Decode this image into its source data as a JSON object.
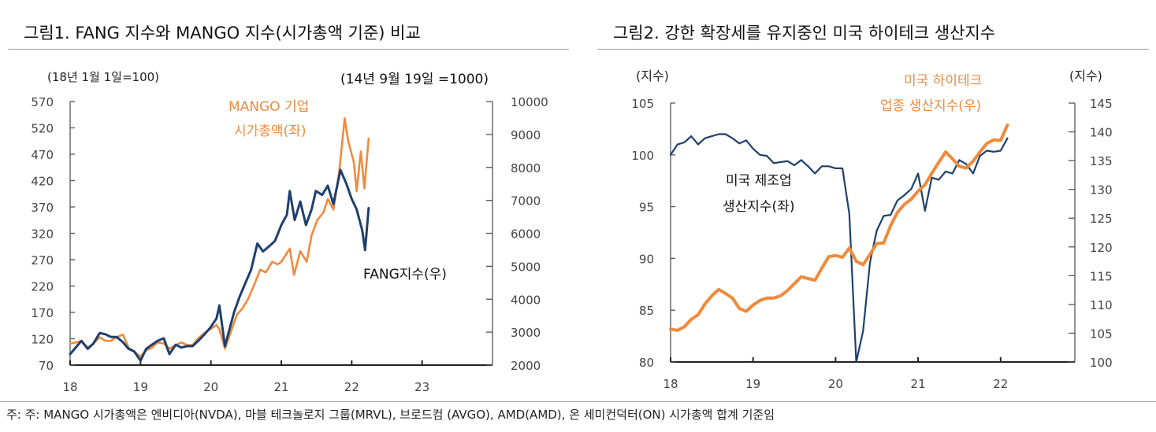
{
  "figure1": {
    "title": "그림1. FANG 지수와 MANGO 지수(시가총액 기준) 비교",
    "left_unit": "(18년 1월 1일=100)",
    "right_unit": "(14년 9월 19일 =1000)",
    "mango_label_1": "MANGO 기업",
    "mango_label_2": "시가총액(좌)",
    "fang_label": "FANG지수(우)"
  },
  "figure2": {
    "title": "그림2. 강한 확장세를 유지중인 미국 하이테크 생산지수",
    "left_unit": "(지수)",
    "right_unit": "(지수)",
    "hitech_label_1": "미국 하이테크",
    "hitech_label_2": "업종 생산지수(우)",
    "mfg_label_1": "미국 제조업",
    "mfg_label_2": "생산지수(좌)"
  },
  "footnote": "주: 주: MANGO 시가총액은 엔비디아(NVDA), 마블 테크놀로지 그룹(MRVL), 브로드컴 (AVGO), AMD(AMD), 온 세미컨덕터(ON) 시가총액 합계 기준임",
  "colors": {
    "navy": "#1f3f6e",
    "orange": "#f08a3c"
  },
  "chart_data": [
    {
      "type": "line",
      "title": "그림1. FANG 지수와 MANGO 지수(시가총액 기준) 비교",
      "x_ticks": [
        "18",
        "19",
        "20",
        "21",
        "22",
        "23"
      ],
      "xlim": [
        18,
        24
      ],
      "y_left": {
        "label": "(18년 1월 1일=100)",
        "lim": [
          70,
          570
        ],
        "ticks": [
          "570",
          "520",
          "470",
          "420",
          "370",
          "320",
          "270",
          "220",
          "170",
          "120",
          "70"
        ]
      },
      "y_right": {
        "label": "(14년 9월 19일 =1000)",
        "lim": [
          2000,
          10000
        ],
        "ticks": [
          "10000",
          "9000",
          "8000",
          "7000",
          "6000",
          "5000",
          "4000",
          "3000",
          "2000"
        ]
      },
      "grid": false,
      "series": [
        {
          "name": "MANGO 기업 시가총액(좌)",
          "axis": "left",
          "color": "#f08a3c",
          "points": [
            [
              18.0,
              111
            ],
            [
              18.08,
              113
            ],
            [
              18.16,
              116
            ],
            [
              18.25,
              103
            ],
            [
              18.33,
              111
            ],
            [
              18.42,
              123
            ],
            [
              18.5,
              116
            ],
            [
              18.58,
              116
            ],
            [
              18.66,
              123
            ],
            [
              18.75,
              128
            ],
            [
              18.83,
              103
            ],
            [
              18.91,
              96
            ],
            [
              19.0,
              86
            ],
            [
              19.08,
              98
            ],
            [
              19.16,
              103
            ],
            [
              19.24,
              113
            ],
            [
              19.33,
              111
            ],
            [
              19.41,
              101
            ],
            [
              19.5,
              108
            ],
            [
              19.58,
              113
            ],
            [
              19.66,
              108
            ],
            [
              19.74,
              108
            ],
            [
              19.82,
              121
            ],
            [
              19.91,
              131
            ],
            [
              19.99,
              138
            ],
            [
              20.08,
              146
            ],
            [
              20.12,
              138
            ],
            [
              20.2,
              101
            ],
            [
              20.29,
              136
            ],
            [
              20.37,
              166
            ],
            [
              20.45,
              178
            ],
            [
              20.53,
              196
            ],
            [
              20.61,
              221
            ],
            [
              20.7,
              251
            ],
            [
              20.78,
              246
            ],
            [
              20.87,
              266
            ],
            [
              20.95,
              261
            ],
            [
              21.0,
              266
            ],
            [
              21.12,
              291
            ],
            [
              21.18,
              241
            ],
            [
              21.27,
              286
            ],
            [
              21.36,
              266
            ],
            [
              21.43,
              316
            ],
            [
              21.51,
              345
            ],
            [
              21.6,
              360
            ],
            [
              21.66,
              385
            ],
            [
              21.74,
              365
            ],
            [
              21.82,
              435
            ],
            [
              21.9,
              538
            ],
            [
              21.95,
              495
            ],
            [
              22.03,
              455
            ],
            [
              22.07,
              400
            ],
            [
              22.13,
              475
            ],
            [
              22.18,
              405
            ],
            [
              22.24,
              500
            ]
          ]
        },
        {
          "name": "FANG지수(우)",
          "axis": "right",
          "color": "#1f3f6e",
          "points": [
            [
              18.0,
              2335
            ],
            [
              18.08,
              2535
            ],
            [
              18.16,
              2735
            ],
            [
              18.25,
              2495
            ],
            [
              18.33,
              2655
            ],
            [
              18.42,
              2975
            ],
            [
              18.5,
              2935
            ],
            [
              18.58,
              2855
            ],
            [
              18.66,
              2855
            ],
            [
              18.75,
              2695
            ],
            [
              18.83,
              2495
            ],
            [
              18.91,
              2415
            ],
            [
              19.0,
              2135
            ],
            [
              19.08,
              2495
            ],
            [
              19.16,
              2615
            ],
            [
              19.24,
              2735
            ],
            [
              19.33,
              2815
            ],
            [
              19.41,
              2335
            ],
            [
              19.5,
              2615
            ],
            [
              19.58,
              2535
            ],
            [
              19.66,
              2575
            ],
            [
              19.74,
              2575
            ],
            [
              19.82,
              2735
            ],
            [
              19.91,
              2935
            ],
            [
              19.99,
              3135
            ],
            [
              20.08,
              3415
            ],
            [
              20.12,
              3810
            ],
            [
              20.2,
              2575
            ],
            [
              20.24,
              2895
            ],
            [
              20.33,
              3610
            ],
            [
              20.41,
              4090
            ],
            [
              20.49,
              4490
            ],
            [
              20.57,
              4890
            ],
            [
              20.66,
              5690
            ],
            [
              20.74,
              5450
            ],
            [
              20.83,
              5610
            ],
            [
              20.91,
              5770
            ],
            [
              21.0,
              6250
            ],
            [
              21.08,
              6565
            ],
            [
              21.12,
              7285
            ],
            [
              21.19,
              6405
            ],
            [
              21.27,
              6965
            ],
            [
              21.35,
              6250
            ],
            [
              21.43,
              6725
            ],
            [
              21.49,
              7285
            ],
            [
              21.58,
              7165
            ],
            [
              21.66,
              7445
            ],
            [
              21.74,
              6885
            ],
            [
              21.84,
              7925
            ],
            [
              21.92,
              7525
            ],
            [
              22.0,
              7045
            ],
            [
              22.07,
              6725
            ],
            [
              22.15,
              6090
            ],
            [
              22.19,
              5490
            ],
            [
              22.24,
              6765
            ]
          ]
        }
      ]
    },
    {
      "type": "line",
      "title": "그림2. 강한 확장세를 유지중인 미국 하이테크 생산지수",
      "x_ticks": [
        "18",
        "19",
        "20",
        "21",
        "22"
      ],
      "xlim": [
        18,
        22.9
      ],
      "y_left": {
        "label": "(지수)",
        "lim": [
          80,
          105
        ],
        "ticks": [
          "105",
          "100",
          "95",
          "90",
          "85",
          "80"
        ]
      },
      "y_right": {
        "label": "(지수)",
        "lim": [
          100,
          145
        ],
        "ticks": [
          "145",
          "140",
          "135",
          "130",
          "125",
          "120",
          "115",
          "110",
          "105",
          "100"
        ]
      },
      "grid": false,
      "x_start": "2018-01",
      "frequency": "monthly",
      "series": [
        {
          "name": "미국 제조업 생산지수(좌)",
          "axis": "left",
          "color": "#1f3f6e",
          "values": [
            100.0,
            101.0,
            101.2,
            101.8,
            101.0,
            101.6,
            101.8,
            102.0,
            102.0,
            101.6,
            101.1,
            101.4,
            100.6,
            100.0,
            99.9,
            99.2,
            99.3,
            99.4,
            99.0,
            99.5,
            98.9,
            98.2,
            98.9,
            98.9,
            98.7,
            98.7,
            94.3,
            80.0,
            83.0,
            89.6,
            92.7,
            94.1,
            94.2,
            95.6,
            96.1,
            96.7,
            98.2,
            94.6,
            97.8,
            97.6,
            98.4,
            98.2,
            99.5,
            99.1,
            98.2,
            99.9,
            100.4,
            100.3,
            100.4,
            101.6
          ]
        },
        {
          "name": "미국 하이테크 업종 생산지수(우)",
          "axis": "right",
          "color": "#f08a3c",
          "values": [
            105.7,
            105.5,
            106.1,
            107.4,
            108.2,
            110.1,
            111.5,
            112.6,
            111.9,
            111.1,
            109.3,
            108.8,
            109.9,
            110.7,
            111.1,
            111.1,
            111.5,
            112.4,
            113.6,
            114.8,
            114.5,
            114.2,
            116.3,
            118.3,
            118.5,
            118.2,
            119.8,
            117.5,
            116.9,
            118.7,
            120.6,
            120.7,
            123.7,
            126.0,
            127.4,
            128.3,
            129.7,
            130.8,
            132.8,
            134.7,
            136.5,
            135.3,
            134.0,
            133.7,
            134.9,
            136.5,
            138.0,
            138.6,
            138.5,
            141.2
          ]
        }
      ]
    }
  ]
}
